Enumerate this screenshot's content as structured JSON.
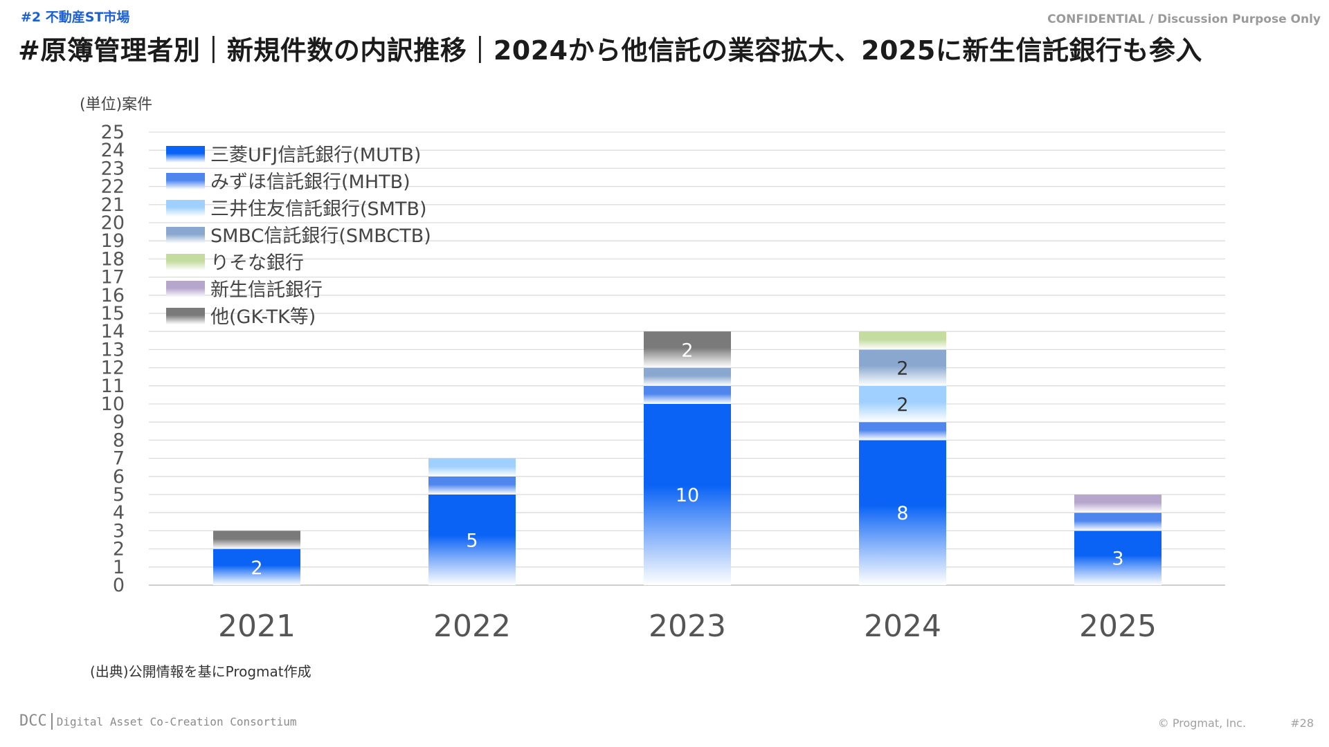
{
  "header": {
    "section_tag": "#2 不動産ST市場",
    "confidential": "CONFIDENTIAL / Discussion Purpose Only",
    "title": "#原簿管理者別｜新規件数の内訳推移｜2024から他信託の業容拡大、2025に新生信託銀行も参入"
  },
  "unit_label": "(単位)案件",
  "source_note": "(出典)公開情報を基にProgmat作成",
  "footer": {
    "logo_main": "DCC",
    "logo_sub": "Digital Asset Co-Creation Consortium",
    "copyright": "© Progmat, Inc.",
    "page_number": "#28"
  },
  "chart_data": {
    "type": "bar",
    "stacked": true,
    "categories": [
      "2021",
      "2022",
      "2023",
      "2024",
      "2025"
    ],
    "ylim": [
      0,
      25
    ],
    "yticks": [
      0,
      1,
      2,
      3,
      4,
      5,
      6,
      7,
      8,
      9,
      10,
      11,
      12,
      13,
      14,
      15,
      16,
      17,
      18,
      19,
      20,
      21,
      22,
      23,
      24,
      25
    ],
    "grid": true,
    "legend_position": "top-left",
    "series": [
      {
        "name": "三菱UFJ信託銀行(MUTB)",
        "color": "#0a63f5",
        "values": [
          2,
          5,
          10,
          8,
          3
        ],
        "labels": [
          "2",
          "5",
          "10",
          "8",
          "3"
        ]
      },
      {
        "name": "みずほ信託銀行(MHTB)",
        "color": "#4f86ee",
        "values": [
          0,
          1,
          1,
          1,
          1
        ],
        "labels": [
          "",
          "",
          "",
          "",
          ""
        ]
      },
      {
        "name": "三井住友信託銀行(SMTB)",
        "color": "#9fd0ff",
        "values": [
          0,
          1,
          0,
          2,
          0
        ],
        "labels": [
          "",
          "",
          "",
          "2",
          ""
        ]
      },
      {
        "name": "SMBC信託銀行(SMBCTB)",
        "color": "#8aa8cf",
        "values": [
          0,
          0,
          1,
          2,
          0
        ],
        "labels": [
          "",
          "",
          "",
          "2",
          ""
        ]
      },
      {
        "name": "りそな銀行",
        "color": "#c4dca0",
        "values": [
          0,
          0,
          0,
          1,
          0
        ],
        "labels": [
          "",
          "",
          "",
          "",
          ""
        ]
      },
      {
        "name": "新生信託銀行",
        "color": "#b6a6cc",
        "values": [
          0,
          0,
          0,
          0,
          1
        ],
        "labels": [
          "",
          "",
          "",
          "",
          ""
        ]
      },
      {
        "name": "他(GK-TK等)",
        "color": "#7a7a7a",
        "values": [
          1,
          0,
          2,
          0,
          0
        ],
        "labels": [
          "",
          "",
          "2",
          "",
          ""
        ]
      }
    ]
  }
}
